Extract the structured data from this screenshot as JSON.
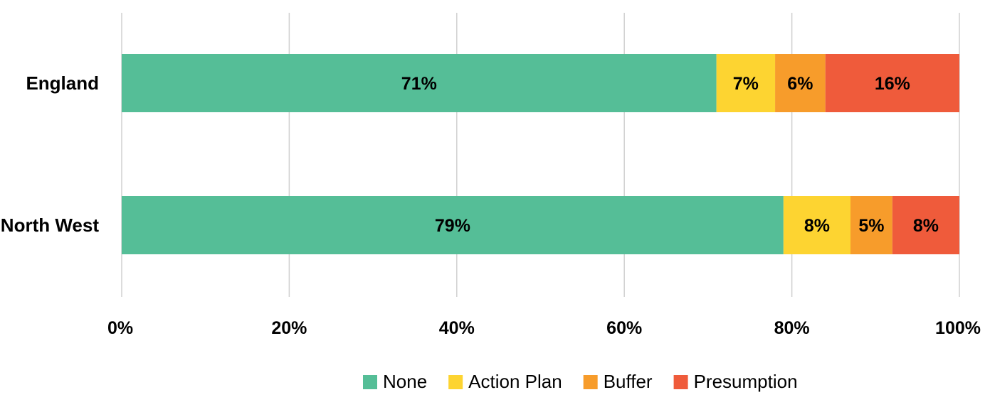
{
  "chart_data": {
    "type": "bar",
    "orientation": "horizontal",
    "stacked": true,
    "categories": [
      "England",
      "North West"
    ],
    "series": [
      {
        "name": "None",
        "values": [
          71,
          79
        ],
        "labels": [
          "71%",
          "79%"
        ],
        "color": "#55BE97"
      },
      {
        "name": "Action Plan",
        "values": [
          7,
          8
        ],
        "labels": [
          "7%",
          "8%"
        ],
        "color": "#FDD431"
      },
      {
        "name": "Buffer",
        "values": [
          6,
          5
        ],
        "labels": [
          "6%",
          "5%"
        ],
        "color": "#F79C2B"
      },
      {
        "name": "Presumption",
        "values": [
          16,
          8
        ],
        "labels": [
          "16%",
          "8%"
        ],
        "color": "#EF5B3B"
      }
    ],
    "xlim": [
      0,
      100
    ],
    "xticks": [
      0,
      20,
      40,
      60,
      80,
      100
    ],
    "xtick_labels": [
      "0%",
      "20%",
      "40%",
      "60%",
      "80%",
      "100%"
    ],
    "grid": true,
    "legend_position": "bottom-right"
  }
}
